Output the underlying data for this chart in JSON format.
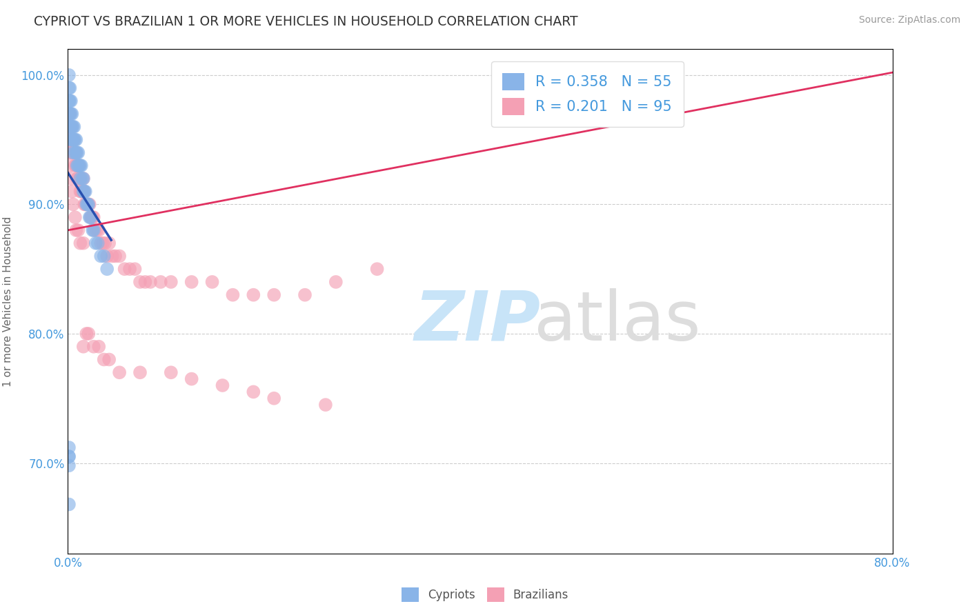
{
  "title": "CYPRIOT VS BRAZILIAN 1 OR MORE VEHICLES IN HOUSEHOLD CORRELATION CHART",
  "source": "Source: ZipAtlas.com",
  "ylabel": "1 or more Vehicles in Household",
  "xlim": [
    0.0,
    0.8
  ],
  "ylim": [
    0.63,
    1.02
  ],
  "xtick_positions": [
    0.0,
    0.1,
    0.2,
    0.3,
    0.4,
    0.5,
    0.6,
    0.7,
    0.8
  ],
  "xticklabels": [
    "0.0%",
    "",
    "",
    "",
    "",
    "",
    "",
    "",
    "80.0%"
  ],
  "ytick_positions": [
    0.7,
    0.8,
    0.9,
    1.0
  ],
  "yticklabels": [
    "70.0%",
    "80.0%",
    "90.0%",
    "100.0%"
  ],
  "cypriot_R": 0.358,
  "cypriot_N": 55,
  "brazilian_R": 0.201,
  "brazilian_N": 95,
  "cypriot_color": "#89b4e8",
  "brazilian_color": "#f4a0b4",
  "cypriot_line_color": "#2850b0",
  "brazilian_line_color": "#e03060",
  "tick_color": "#4499dd",
  "label_color": "#666666",
  "background_color": "#ffffff",
  "watermark_zip_color": "#c8e4f8",
  "watermark_atlas_color": "#dddddd",
  "cypriot_x": [
    0.001,
    0.001,
    0.001,
    0.001,
    0.001,
    0.002,
    0.002,
    0.002,
    0.002,
    0.002,
    0.003,
    0.003,
    0.003,
    0.004,
    0.004,
    0.004,
    0.005,
    0.005,
    0.005,
    0.006,
    0.006,
    0.007,
    0.007,
    0.008,
    0.008,
    0.009,
    0.009,
    0.01,
    0.01,
    0.011,
    0.012,
    0.012,
    0.013,
    0.014,
    0.015,
    0.015,
    0.016,
    0.017,
    0.018,
    0.019,
    0.02,
    0.021,
    0.022,
    0.024,
    0.025,
    0.027,
    0.029,
    0.032,
    0.035,
    0.038,
    0.001,
    0.001,
    0.001,
    0.001,
    0.001
  ],
  "cypriot_y": [
    1.0,
    0.99,
    0.98,
    0.97,
    0.96,
    0.99,
    0.98,
    0.97,
    0.96,
    0.95,
    0.98,
    0.97,
    0.96,
    0.97,
    0.96,
    0.95,
    0.96,
    0.95,
    0.94,
    0.96,
    0.95,
    0.95,
    0.94,
    0.95,
    0.94,
    0.94,
    0.93,
    0.94,
    0.93,
    0.93,
    0.93,
    0.92,
    0.93,
    0.92,
    0.92,
    0.91,
    0.91,
    0.91,
    0.9,
    0.9,
    0.9,
    0.89,
    0.89,
    0.88,
    0.88,
    0.87,
    0.87,
    0.86,
    0.86,
    0.85,
    0.705,
    0.698,
    0.712,
    0.668,
    0.705
  ],
  "brazilian_x": [
    0.001,
    0.001,
    0.001,
    0.002,
    0.002,
    0.002,
    0.003,
    0.003,
    0.003,
    0.004,
    0.004,
    0.004,
    0.005,
    0.005,
    0.006,
    0.006,
    0.007,
    0.007,
    0.008,
    0.008,
    0.009,
    0.009,
    0.01,
    0.01,
    0.011,
    0.012,
    0.012,
    0.013,
    0.013,
    0.014,
    0.015,
    0.015,
    0.016,
    0.016,
    0.017,
    0.018,
    0.019,
    0.02,
    0.021,
    0.022,
    0.023,
    0.024,
    0.025,
    0.026,
    0.028,
    0.03,
    0.032,
    0.034,
    0.036,
    0.038,
    0.04,
    0.043,
    0.046,
    0.05,
    0.055,
    0.06,
    0.065,
    0.07,
    0.075,
    0.08,
    0.09,
    0.1,
    0.12,
    0.14,
    0.16,
    0.18,
    0.2,
    0.23,
    0.26,
    0.3,
    0.001,
    0.002,
    0.003,
    0.004,
    0.005,
    0.007,
    0.008,
    0.01,
    0.012,
    0.015,
    0.015,
    0.018,
    0.02,
    0.025,
    0.03,
    0.035,
    0.04,
    0.05,
    0.07,
    0.1,
    0.12,
    0.15,
    0.18,
    0.2,
    0.25
  ],
  "brazilian_y": [
    0.97,
    0.96,
    0.95,
    0.97,
    0.96,
    0.95,
    0.96,
    0.95,
    0.94,
    0.96,
    0.95,
    0.94,
    0.95,
    0.94,
    0.95,
    0.94,
    0.94,
    0.93,
    0.94,
    0.93,
    0.93,
    0.92,
    0.93,
    0.92,
    0.93,
    0.92,
    0.91,
    0.92,
    0.91,
    0.91,
    0.92,
    0.91,
    0.91,
    0.9,
    0.9,
    0.9,
    0.9,
    0.9,
    0.9,
    0.89,
    0.89,
    0.89,
    0.89,
    0.88,
    0.88,
    0.88,
    0.87,
    0.87,
    0.87,
    0.86,
    0.87,
    0.86,
    0.86,
    0.86,
    0.85,
    0.85,
    0.85,
    0.84,
    0.84,
    0.84,
    0.84,
    0.84,
    0.84,
    0.84,
    0.83,
    0.83,
    0.83,
    0.83,
    0.84,
    0.85,
    0.94,
    0.93,
    0.92,
    0.91,
    0.9,
    0.89,
    0.88,
    0.88,
    0.87,
    0.87,
    0.79,
    0.8,
    0.8,
    0.79,
    0.79,
    0.78,
    0.78,
    0.77,
    0.77,
    0.77,
    0.765,
    0.76,
    0.755,
    0.75,
    0.745
  ]
}
